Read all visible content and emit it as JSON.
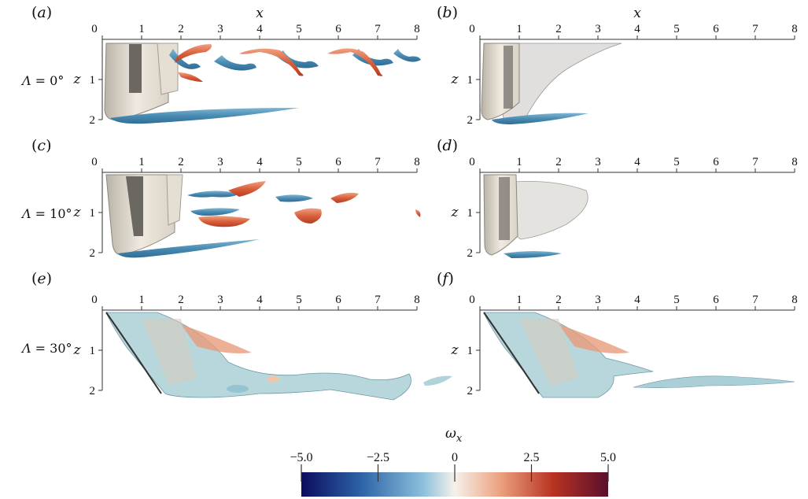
{
  "figure": {
    "panels": [
      {
        "label_open": "(",
        "label_letter": "a",
        "label_close": ")",
        "show_x_title": true
      },
      {
        "label_open": "(",
        "label_letter": "b",
        "label_close": ")",
        "show_x_title": true
      },
      {
        "label_open": "(",
        "label_letter": "c",
        "label_close": ")",
        "show_x_title": false
      },
      {
        "label_open": "(",
        "label_letter": "d",
        "label_close": ")",
        "show_x_title": false
      },
      {
        "label_open": "(",
        "label_letter": "e",
        "label_close": ")",
        "show_x_title": false
      },
      {
        "label_open": "(",
        "label_letter": "f",
        "label_close": ")",
        "show_x_title": false
      }
    ],
    "rows": [
      {
        "lambda_symbol": "Λ",
        "lambda_value": " = 0°"
      },
      {
        "lambda_symbol": "Λ",
        "lambda_value": " = 10°"
      },
      {
        "lambda_symbol": "Λ",
        "lambda_value": " = 30°"
      }
    ],
    "x_axis": {
      "title": "x",
      "ticks": [
        "0",
        "1",
        "2",
        "3",
        "4",
        "5",
        "6",
        "7",
        "8"
      ],
      "range": [
        0,
        8
      ]
    },
    "z_axis": {
      "title": "z",
      "ticks": [
        "1",
        "2"
      ],
      "range": [
        0,
        2
      ]
    },
    "colorbar": {
      "title_symbol": "ω",
      "title_subscript": "x",
      "ticks": [
        "−5.0",
        "−2.5",
        "0",
        "2.5",
        "5.0"
      ],
      "range": [
        -5.0,
        5.0
      ],
      "colors": [
        "#0b0c5e",
        "#2f66a8",
        "#8ec1dc",
        "#f6f1ea",
        "#eba07e",
        "#b83321",
        "#5a0f2d"
      ]
    }
  }
}
